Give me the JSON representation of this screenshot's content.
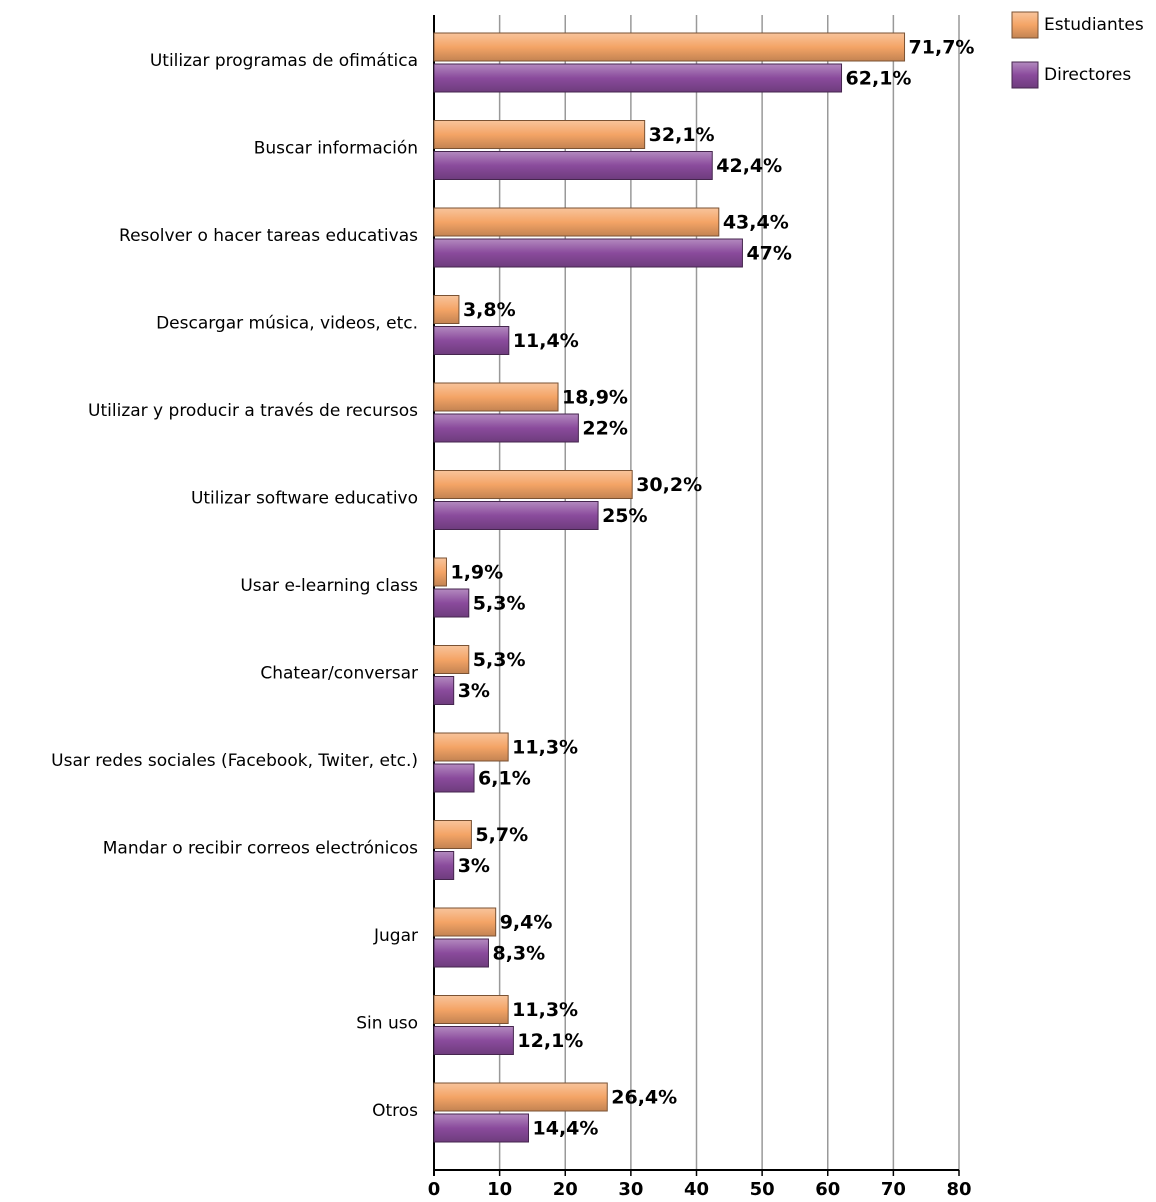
{
  "chart_data": {
    "type": "bar",
    "orientation": "horizontal",
    "categories": [
      "Utilizar programas de ofimática",
      "Buscar información",
      "Resolver o hacer tareas educativas",
      "Descargar música, videos, etc.",
      "Utilizar y producir a través de recursos",
      "Utilizar software educativo",
      "Usar e-learning class",
      "Chatear/conversar",
      "Usar redes sociales (Facebook, Twiter, etc.)",
      "Mandar o recibir correos electrónicos",
      "Jugar",
      "Sin uso",
      "Otros"
    ],
    "series": [
      {
        "name": "Estudiantes",
        "color": "#f4a466",
        "values": [
          71.7,
          32.1,
          43.4,
          3.8,
          18.9,
          30.2,
          1.9,
          5.3,
          11.3,
          5.7,
          9.4,
          11.3,
          26.4
        ],
        "value_labels": [
          "71,7%",
          "32,1%",
          "43,4%",
          "3,8%",
          "18,9%",
          "30,2%",
          "1,9%",
          "5,3%",
          "11,3%",
          "5,7%",
          "9,4%",
          "11,3%",
          "26,4%"
        ]
      },
      {
        "name": "Directores",
        "color": "#8a4b9c",
        "values": [
          62.1,
          42.4,
          47,
          11.4,
          22,
          25,
          5.3,
          3,
          6.1,
          3,
          8.3,
          12.1,
          14.4
        ],
        "value_labels": [
          "62,1%",
          "42,4%",
          "47%",
          "11,4%",
          "22%",
          "25%",
          "5,3%",
          "3%",
          "6,1%",
          "3%",
          "8,3%",
          "12,1%",
          "14,4%"
        ]
      }
    ],
    "xlim": [
      0,
      80
    ],
    "xticks": [
      0,
      10,
      20,
      30,
      40,
      50,
      60,
      70,
      80
    ],
    "grid": true,
    "legend": "top-right"
  }
}
